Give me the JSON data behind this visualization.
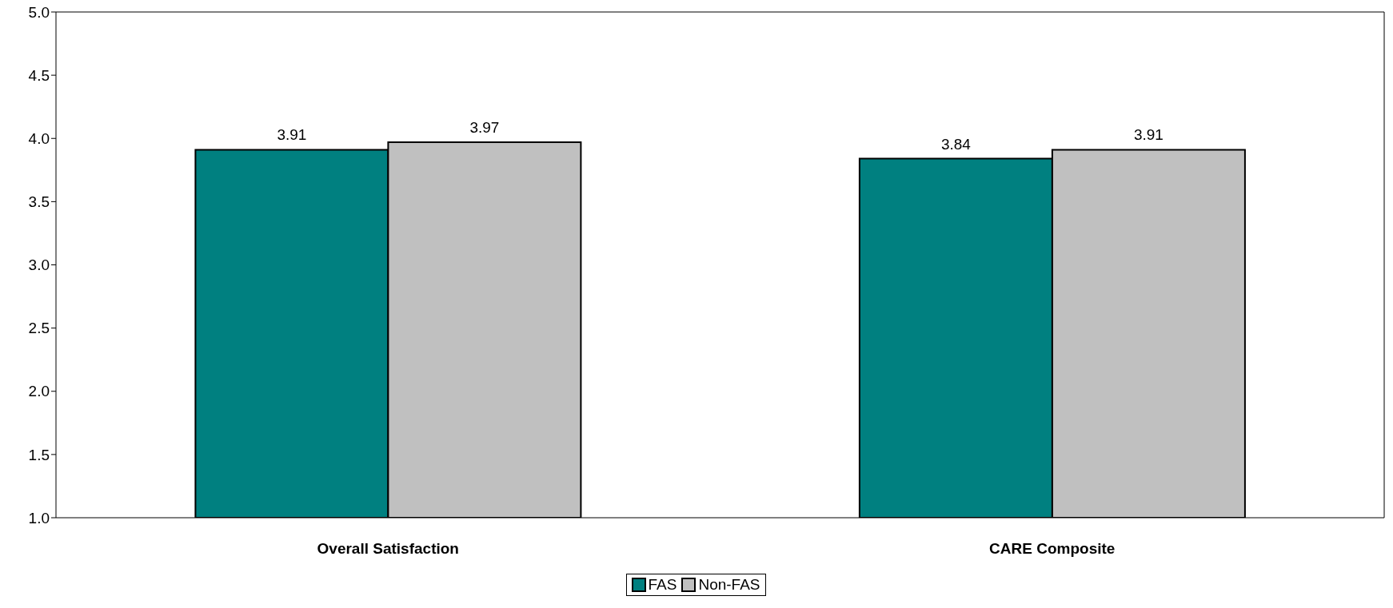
{
  "chart_data": {
    "type": "bar",
    "categories": [
      "Overall Satisfaction",
      "CARE Composite"
    ],
    "series": [
      {
        "name": "FAS",
        "color": "#008080",
        "values": [
          3.91,
          3.84
        ]
      },
      {
        "name": "Non-FAS",
        "color": "#c0c0c0",
        "values": [
          3.97,
          3.91
        ]
      }
    ],
    "ylim": [
      1,
      5
    ],
    "yticks": [
      {
        "value": 1,
        "label": "1.0"
      },
      {
        "value": 1.5,
        "label": "1.5"
      },
      {
        "value": 2,
        "label": "2.0"
      },
      {
        "value": 2.5,
        "label": "2.5"
      },
      {
        "value": 3,
        "label": "3.0"
      },
      {
        "value": 3.5,
        "label": "3.5"
      },
      {
        "value": 4,
        "label": "4.0"
      },
      {
        "value": 4.5,
        "label": "4.5"
      },
      {
        "value": 5,
        "label": "5.0"
      }
    ],
    "data_labels": true,
    "legend": "bottom",
    "grid": false
  }
}
